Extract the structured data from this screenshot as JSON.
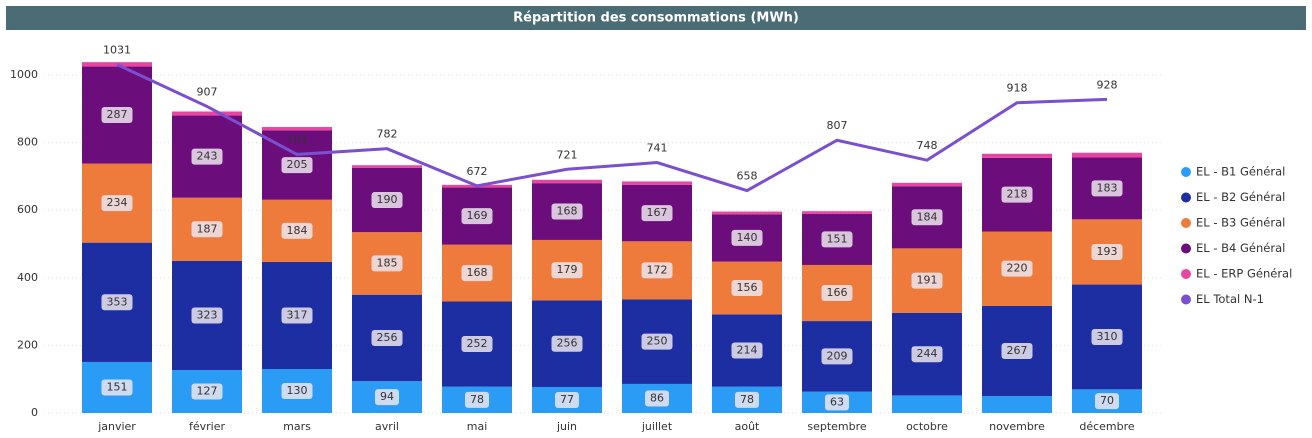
{
  "chart_data": {
    "type": "stacked_bar_line",
    "title": "Répartition des consommations (MWh)",
    "categories": [
      "janvier",
      "février",
      "mars",
      "avril",
      "mai",
      "juin",
      "juillet",
      "août",
      "septembre",
      "octobre",
      "novembre",
      "décembre"
    ],
    "series": [
      {
        "name": "EL - B1 Général",
        "color": "#2b9cf6",
        "values": [
          151,
          127,
          130,
          94,
          78,
          77,
          86,
          78,
          63,
          52,
          50,
          70
        ],
        "value_labels": [
          151,
          127,
          130,
          94,
          78,
          77,
          86,
          78,
          63,
          null,
          null,
          70
        ]
      },
      {
        "name": "EL - B2 Général",
        "color": "#1d2ea3",
        "values": [
          353,
          323,
          317,
          256,
          252,
          256,
          250,
          214,
          209,
          244,
          267,
          310
        ]
      },
      {
        "name": "EL - B3 Général",
        "color": "#ee7a3c",
        "values": [
          234,
          187,
          184,
          185,
          168,
          179,
          172,
          156,
          166,
          191,
          220,
          193
        ]
      },
      {
        "name": "EL - B4 Général",
        "color": "#6b0e7b",
        "values": [
          287,
          243,
          205,
          190,
          169,
          168,
          167,
          140,
          151,
          184,
          218,
          183
        ]
      },
      {
        "name": "EL - ERP Général",
        "color": "#e645a0",
        "values": [
          13,
          12,
          10,
          8,
          8,
          10,
          10,
          8,
          8,
          10,
          12,
          14
        ],
        "value_labels": [
          null,
          null,
          null,
          null,
          null,
          null,
          null,
          null,
          null,
          null,
          null,
          null
        ]
      },
      {
        "name": "EL Total N-1",
        "type": "line",
        "color": "#7a4fd0",
        "values": [
          1031,
          907,
          765,
          782,
          672,
          721,
          741,
          658,
          807,
          748,
          918,
          928
        ]
      }
    ],
    "ylim": [
      0,
      1000
    ],
    "yticks": [
      0,
      200,
      400,
      600,
      800,
      1000
    ],
    "grid": true,
    "legend": "right"
  }
}
